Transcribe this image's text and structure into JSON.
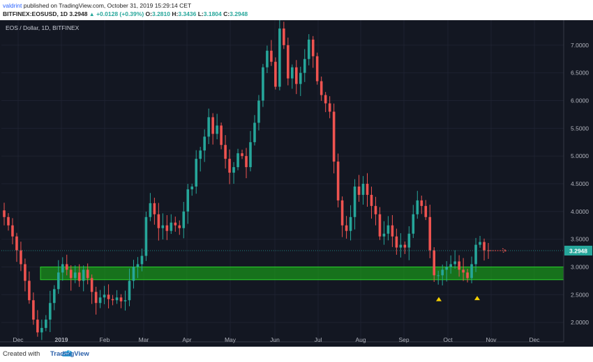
{
  "header": {
    "author": "valdrint",
    "published": "published on TradingView.com, October 31, 2019 15:29:14 CET",
    "symbol": "BITFINEX:EOSUSD, 1D",
    "last": "3.2948",
    "change": "+0.0128 (+0.39%)",
    "open_label": "O:",
    "open": "3.2810",
    "high_label": "H:",
    "high": "3.3436",
    "low_label": "L:",
    "low": "3.1804",
    "close_label": "C:",
    "close": "3.2948"
  },
  "chart_title": "EOS / Dollar, 1D, BITFINEX",
  "footer": {
    "created_with": "Created with",
    "brand": "TradingView"
  },
  "colors": {
    "background": "#131722",
    "up": "#26a69a",
    "down": "#ef5350",
    "grid": "#1e2230",
    "axis_text": "#b2b5be",
    "support_zone": "#1a9a1a",
    "marker": "#f5d000",
    "price_label_bg": "#26a69a"
  },
  "icons": {
    "triangle": "triangle-up-icon"
  },
  "chart_data": {
    "type": "candlestick",
    "title": "EOS / Dollar, 1D, BITFINEX",
    "x_tick_labels": [
      "Dec",
      "2019",
      "Feb",
      "Mar",
      "Apr",
      "May",
      "Jun",
      "Jul",
      "Aug",
      "Sep",
      "Oct",
      "Nov",
      "Dec"
    ],
    "y_tick_labels": [
      "7.0000",
      "6.5000",
      "6.0000",
      "5.5000",
      "5.0000",
      "4.5000",
      "4.0000",
      "3.5000",
      "3.0000",
      "2.5000",
      "2.0000"
    ],
    "y_ticks": [
      7.0,
      6.5,
      6.0,
      5.5,
      5.0,
      4.5,
      4.0,
      3.5,
      3.0,
      2.5,
      2.0
    ],
    "ylim": [
      1.65,
      7.45
    ],
    "last_price_label": "3.2948",
    "last_price": 3.2948,
    "support_zone": {
      "low": 2.77,
      "high": 3.0
    },
    "markers": [
      {
        "type": "triangle-up",
        "date_month": "Sep",
        "price": 2.42
      },
      {
        "type": "triangle-up",
        "date_month": "Oct",
        "price": 2.44
      }
    ],
    "close_series": [
      3.9,
      3.75,
      3.55,
      3.3,
      3.05,
      2.75,
      2.4,
      2.05,
      1.82,
      1.9,
      2.05,
      2.35,
      2.6,
      2.9,
      3.05,
      2.95,
      2.8,
      2.9,
      2.75,
      2.95,
      2.8,
      2.55,
      2.35,
      2.45,
      2.5,
      2.42,
      2.4,
      2.45,
      2.38,
      2.4,
      2.75,
      3.0,
      3.05,
      3.2,
      3.9,
      4.15,
      3.95,
      3.7,
      3.75,
      3.65,
      3.8,
      3.75,
      3.7,
      4.0,
      4.4,
      4.45,
      4.95,
      5.1,
      5.35,
      5.7,
      5.4,
      5.55,
      5.2,
      4.95,
      4.7,
      4.8,
      5.05,
      5.0,
      4.8,
      5.25,
      5.6,
      6.0,
      6.6,
      6.9,
      6.7,
      6.25,
      7.3,
      7.0,
      6.4,
      6.6,
      6.3,
      6.5,
      6.75,
      7.1,
      6.8,
      6.35,
      6.1,
      5.95,
      5.8,
      4.9,
      4.2,
      3.75,
      3.65,
      3.9,
      4.45,
      4.3,
      4.5,
      4.3,
      4.1,
      3.95,
      3.55,
      3.6,
      3.75,
      3.55,
      3.35,
      3.4,
      3.35,
      3.6,
      3.95,
      4.2,
      4.1,
      3.9,
      3.3,
      2.85,
      2.85,
      2.95,
      3.0,
      3.05,
      3.1,
      2.95,
      2.9,
      2.8,
      3.05,
      3.4,
      3.45,
      3.3,
      3.2948
    ]
  }
}
